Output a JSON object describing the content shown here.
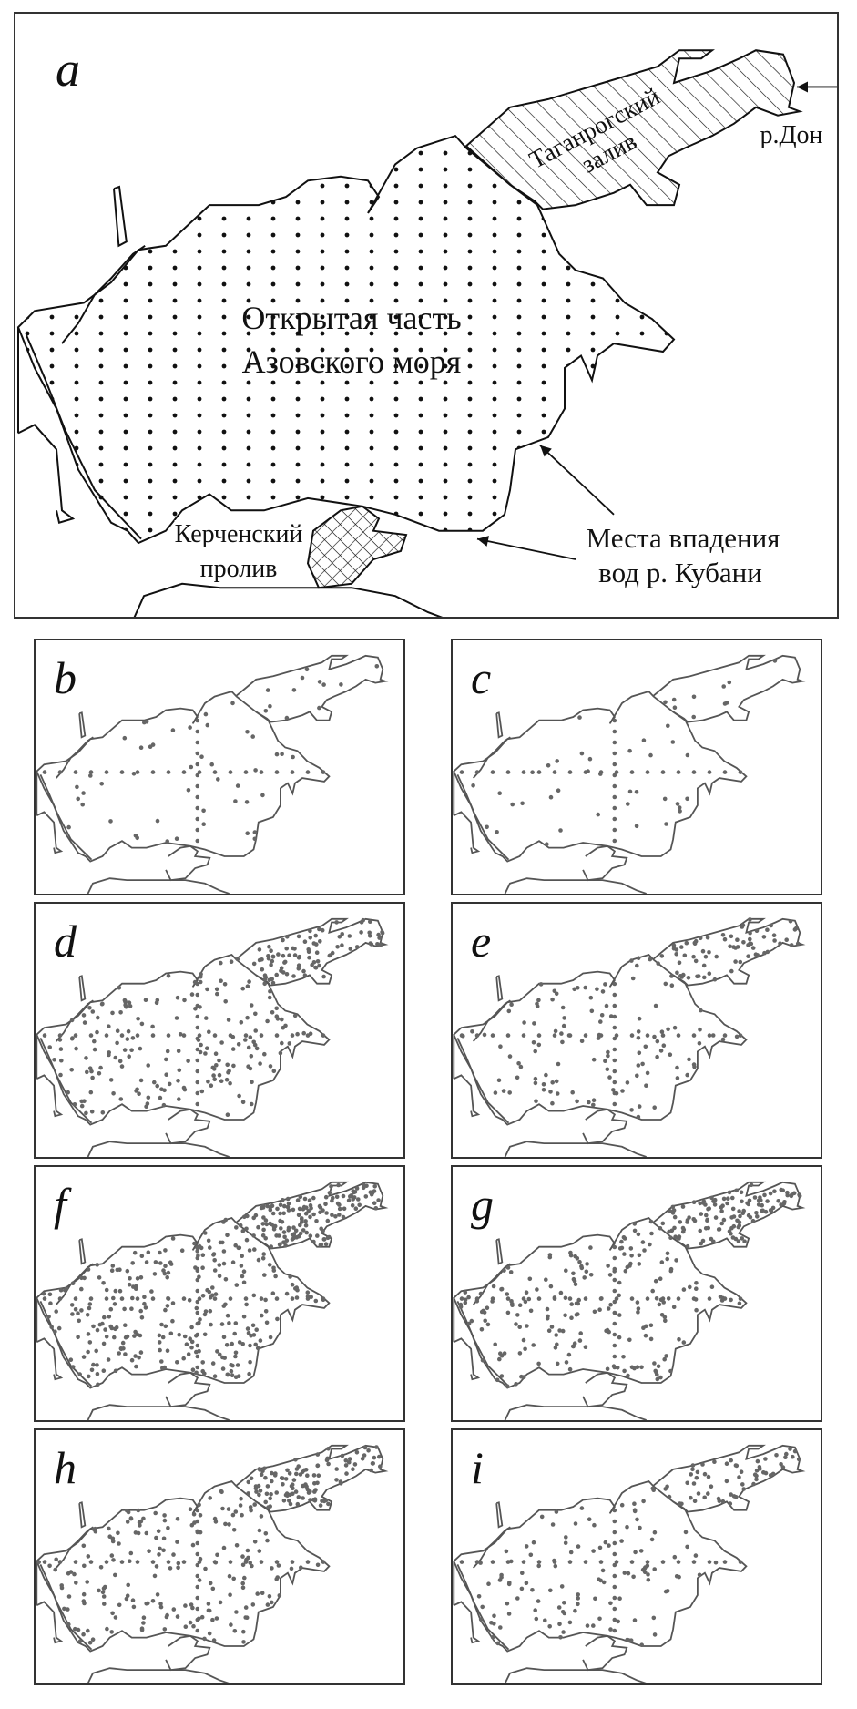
{
  "panel_a": {
    "letter": "a",
    "gulf_label_1": "Таганрогский",
    "gulf_label_2": "залив",
    "river_don": "р.Дон",
    "sea_label_1": "Открытая часть",
    "sea_label_2": "Азовского моря",
    "strait_label_1": "Керченский",
    "strait_label_2": "пролив",
    "kuban_label_1": "Места впадения",
    "kuban_label_2": "вод р.  Кубани"
  },
  "small_panels": [
    {
      "letter": "b"
    },
    {
      "letter": "c"
    },
    {
      "letter": "d"
    },
    {
      "letter": "e"
    },
    {
      "letter": "f"
    },
    {
      "letter": "g"
    },
    {
      "letter": "h"
    },
    {
      "letter": "i"
    }
  ],
  "colors": {
    "coast": "#111111",
    "station_dots": "#666666",
    "small_coast": "#555555"
  }
}
